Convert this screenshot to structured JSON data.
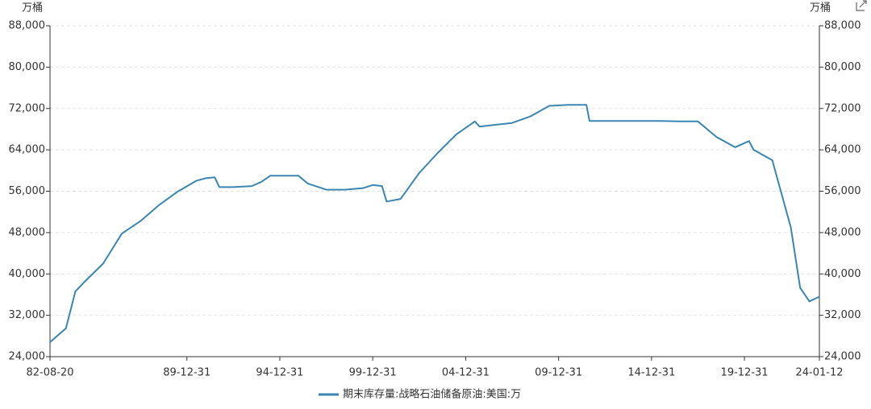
{
  "chart_data": {
    "type": "line",
    "y_unit": "万桶",
    "y2_unit": "万桶",
    "x": [
      "82-08-20",
      "83-06-30",
      "83-12-31",
      "84-06-30",
      "85-06-30",
      "86-06-30",
      "87-06-30",
      "88-06-30",
      "89-06-30",
      "90-06-30",
      "90-12-31",
      "91-06-30",
      "91-09-30",
      "92-06-30",
      "93-06-30",
      "93-12-31",
      "94-06-30",
      "95-06-30",
      "95-12-31",
      "96-06-30",
      "97-06-30",
      "98-06-30",
      "99-06-30",
      "99-12-31",
      "00-06-30",
      "00-09-30",
      "01-06-30",
      "02-06-30",
      "03-06-30",
      "04-06-30",
      "05-06-30",
      "05-09-30",
      "06-06-30",
      "07-06-30",
      "08-06-30",
      "09-06-30",
      "10-06-30",
      "11-06-30",
      "11-08-31",
      "12-06-30",
      "13-06-30",
      "14-06-30",
      "15-06-30",
      "16-06-30",
      "17-06-30",
      "18-06-30",
      "19-06-30",
      "20-03-31",
      "20-06-30",
      "21-06-30",
      "22-06-30",
      "22-12-31",
      "23-06-30",
      "24-01-12"
    ],
    "series": [
      {
        "name": "期末库存量:战略石油储备原油:美国:万",
        "color": "#3a86b1",
        "values": [
          26800,
          29500,
          36600,
          38500,
          42000,
          47800,
          50200,
          53300,
          55900,
          58000,
          58500,
          58700,
          56800,
          56800,
          57000,
          57800,
          59000,
          59000,
          59000,
          57500,
          56300,
          56300,
          56600,
          57200,
          57000,
          54000,
          54500,
          59500,
          63400,
          67000,
          69500,
          68500,
          68800,
          69200,
          70500,
          72500,
          72700,
          72700,
          69600,
          69600,
          69600,
          69600,
          69600,
          69500,
          69500,
          66500,
          64500,
          65700,
          64000,
          62000,
          49000,
          37300,
          34700,
          35600
        ]
      }
    ],
    "ylim": [
      24000,
      88000
    ],
    "yticks": [
      {
        "value": 24000,
        "label": "24,000"
      },
      {
        "value": 32000,
        "label": "32,000"
      },
      {
        "value": 40000,
        "label": "40,000"
      },
      {
        "value": 48000,
        "label": "48,000"
      },
      {
        "value": 56000,
        "label": "56,000"
      },
      {
        "value": 64000,
        "label": "64,000"
      },
      {
        "value": 72000,
        "label": "72,000"
      },
      {
        "value": 80000,
        "label": "80,000"
      },
      {
        "value": 88000,
        "label": "88,000"
      }
    ],
    "y2lim": [
      24000,
      88000
    ],
    "y2ticks": [
      {
        "value": 24000,
        "label": "24,000"
      },
      {
        "value": 32000,
        "label": "32,000"
      },
      {
        "value": 40000,
        "label": "40,000"
      },
      {
        "value": 48000,
        "label": "48,000"
      },
      {
        "value": 56000,
        "label": "56,000"
      },
      {
        "value": 64000,
        "label": "64,000"
      },
      {
        "value": 72000,
        "label": "72,000"
      },
      {
        "value": 80000,
        "label": "80,000"
      },
      {
        "value": 88000,
        "label": "88,000"
      }
    ],
    "xlim": [
      "82-08-20",
      "24-01-12"
    ],
    "xticks": [
      "82-08-20",
      "89-12-31",
      "94-12-31",
      "99-12-31",
      "04-12-31",
      "09-12-31",
      "14-12-31",
      "19-12-31",
      "24-01-12"
    ],
    "grid": true
  }
}
